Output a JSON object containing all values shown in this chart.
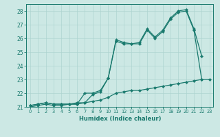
{
  "xlabel": "Humidex (Indice chaleur)",
  "x_values": [
    0,
    1,
    2,
    3,
    4,
    5,
    6,
    7,
    8,
    9,
    10,
    11,
    12,
    13,
    14,
    15,
    16,
    17,
    18,
    19,
    20,
    21,
    22,
    23
  ],
  "series1": [
    21.1,
    21.2,
    21.3,
    21.2,
    21.2,
    21.2,
    21.2,
    22.0,
    22.0,
    22.2,
    23.1,
    25.9,
    25.7,
    25.6,
    25.7,
    26.7,
    26.1,
    26.6,
    27.5,
    28.0,
    28.1,
    26.7,
    24.7,
    null
  ],
  "series2": [
    21.1,
    21.2,
    21.3,
    21.2,
    21.2,
    21.2,
    21.2,
    21.3,
    21.9,
    22.1,
    23.1,
    25.8,
    25.6,
    25.6,
    25.6,
    26.6,
    26.0,
    26.5,
    27.4,
    27.9,
    28.0,
    26.6,
    23.0,
    null
  ],
  "series3": [
    21.0,
    21.1,
    21.2,
    21.1,
    21.1,
    21.2,
    21.3,
    21.3,
    21.4,
    21.5,
    21.7,
    22.0,
    22.1,
    22.2,
    22.2,
    22.3,
    22.4,
    22.5,
    22.6,
    22.7,
    22.8,
    22.9,
    23.0,
    23.0
  ],
  "line_color": "#1a7a6e",
  "bg_color": "#cce8e4",
  "grid_color": "#aed4d0",
  "ylim": [
    21,
    28.5
  ],
  "yticks": [
    21,
    22,
    23,
    24,
    25,
    26,
    27,
    28
  ],
  "xticks": [
    0,
    1,
    2,
    3,
    4,
    5,
    6,
    7,
    8,
    9,
    10,
    11,
    12,
    13,
    14,
    15,
    16,
    17,
    18,
    19,
    20,
    21,
    22,
    23
  ],
  "marker": "D",
  "marker_size": 2.2,
  "lw": 0.9
}
